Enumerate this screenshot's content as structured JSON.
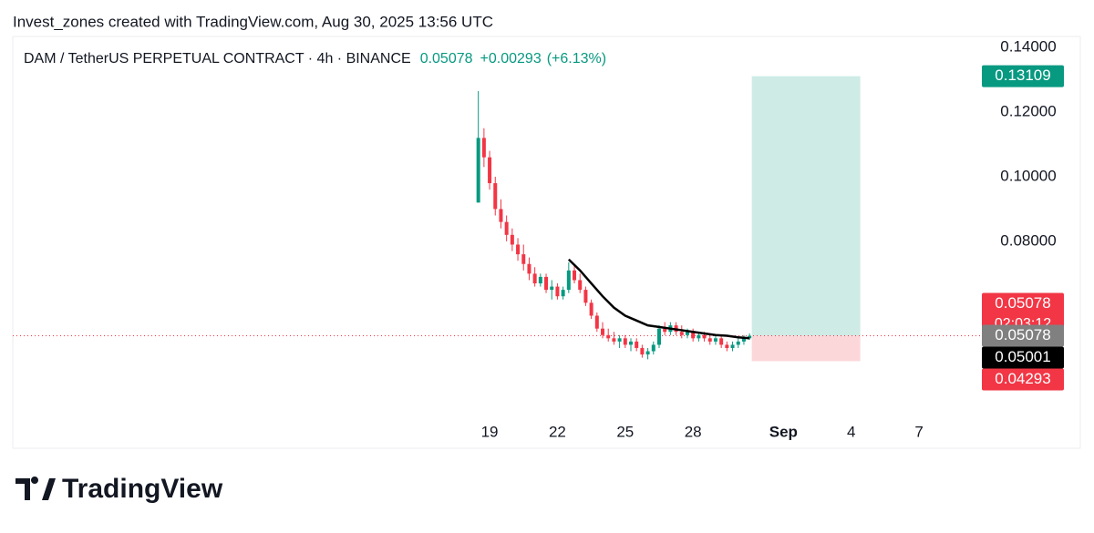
{
  "header": {
    "credit": "Invest_zones created with TradingView.com, Aug 30, 2025 13:56 UTC",
    "symbol": "DAM / TetherUS PERPETUAL CONTRACT · 4h · BINANCE",
    "price": "0.05078",
    "change": "+0.00293",
    "change_pct": "(+6.13%)"
  },
  "chart_data": {
    "type": "candlestick",
    "x": [
      18.5,
      18.75,
      19,
      19.25,
      19.5,
      19.75,
      20,
      20.25,
      20.5,
      20.75,
      21,
      21.25,
      21.5,
      21.75,
      22,
      22.25,
      22.5,
      22.75,
      23,
      23.25,
      23.5,
      23.75,
      24,
      24.25,
      24.5,
      24.75,
      25,
      25.25,
      25.5,
      25.75,
      26,
      26.25,
      26.5,
      26.75,
      27,
      27.25,
      27.5,
      27.75,
      28,
      28.25,
      28.5,
      28.75,
      29,
      29.25,
      29.5,
      29.75,
      30,
      30.25,
      30.5
    ],
    "open": [
      0.092,
      0.112,
      0.106,
      0.098,
      0.09,
      0.086,
      0.082,
      0.079,
      0.076,
      0.073,
      0.07,
      0.067,
      0.069,
      0.065,
      0.066,
      0.063,
      0.065,
      0.071,
      0.068,
      0.065,
      0.061,
      0.057,
      0.053,
      0.051,
      0.05,
      0.049,
      0.05,
      0.048,
      0.049,
      0.047,
      0.045,
      0.046,
      0.048,
      0.053,
      0.052,
      0.054,
      0.052,
      0.051,
      0.052,
      0.05,
      0.051,
      0.05,
      0.049,
      0.05,
      0.048,
      0.047,
      0.048,
      0.049,
      0.05
    ],
    "high": [
      0.1265,
      0.115,
      0.108,
      0.1,
      0.093,
      0.088,
      0.084,
      0.081,
      0.079,
      0.075,
      0.072,
      0.07,
      0.07,
      0.068,
      0.067,
      0.066,
      0.0735,
      0.073,
      0.07,
      0.066,
      0.062,
      0.058,
      0.055,
      0.053,
      0.052,
      0.051,
      0.051,
      0.05,
      0.05,
      0.048,
      0.047,
      0.049,
      0.054,
      0.055,
      0.055,
      0.055,
      0.054,
      0.053,
      0.053,
      0.052,
      0.052,
      0.051,
      0.051,
      0.051,
      0.049,
      0.049,
      0.05,
      0.051,
      0.0515
    ],
    "low": [
      0.092,
      0.103,
      0.096,
      0.088,
      0.084,
      0.08,
      0.077,
      0.074,
      0.071,
      0.068,
      0.066,
      0.066,
      0.064,
      0.062,
      0.062,
      0.062,
      0.064,
      0.067,
      0.064,
      0.06,
      0.056,
      0.052,
      0.05,
      0.049,
      0.048,
      0.047,
      0.047,
      0.046,
      0.046,
      0.044,
      0.0435,
      0.045,
      0.047,
      0.051,
      0.051,
      0.051,
      0.05,
      0.05,
      0.049,
      0.049,
      0.049,
      0.048,
      0.048,
      0.047,
      0.046,
      0.046,
      0.047,
      0.048,
      0.0495
    ],
    "close": [
      0.112,
      0.106,
      0.098,
      0.09,
      0.086,
      0.082,
      0.079,
      0.076,
      0.073,
      0.07,
      0.067,
      0.069,
      0.065,
      0.066,
      0.063,
      0.065,
      0.071,
      0.068,
      0.065,
      0.061,
      0.057,
      0.053,
      0.051,
      0.05,
      0.049,
      0.05,
      0.048,
      0.049,
      0.047,
      0.045,
      0.046,
      0.048,
      0.053,
      0.052,
      0.054,
      0.052,
      0.051,
      0.052,
      0.05,
      0.051,
      0.05,
      0.049,
      0.05,
      0.048,
      0.047,
      0.048,
      0.049,
      0.05,
      0.05078
    ],
    "up_color": "#089981",
    "down_color": "#f23645",
    "ma": {
      "color": "#000000",
      "x": [
        22.5,
        23,
        23.5,
        24,
        24.5,
        25,
        25.5,
        26,
        26.5,
        27,
        27.5,
        28,
        28.5,
        29,
        29.5,
        30,
        30.5
      ],
      "values": [
        0.0744,
        0.071,
        0.067,
        0.063,
        0.0595,
        0.057,
        0.0555,
        0.054,
        0.0535,
        0.053,
        0.0525,
        0.052,
        0.0515,
        0.051,
        0.0508,
        0.0503,
        0.05001
      ]
    },
    "position": {
      "x": [
        30.6,
        35.4
      ],
      "target": 0.13109,
      "entry": 0.05078,
      "stop": 0.04293
    },
    "last_price": 0.05078,
    "countdown": "02:03:12",
    "xlim": [
      -2.1,
      40.7
    ],
    "ylim": [
      0.025,
      0.1434
    ],
    "xticks": [
      19,
      22,
      25,
      28,
      {
        "value": 32,
        "label": "Sep"
      },
      {
        "value": 35,
        "label": "4"
      },
      {
        "value": 38,
        "label": "7"
      }
    ],
    "yticks": [
      {
        "value": 0.08,
        "label": "0.08000"
      },
      {
        "value": 0.1,
        "label": "0.10000"
      },
      {
        "value": 0.12,
        "label": "0.12000"
      },
      {
        "value": 0.14,
        "label": "0.14000"
      }
    ]
  },
  "footer": {
    "logo": "TradingView"
  }
}
